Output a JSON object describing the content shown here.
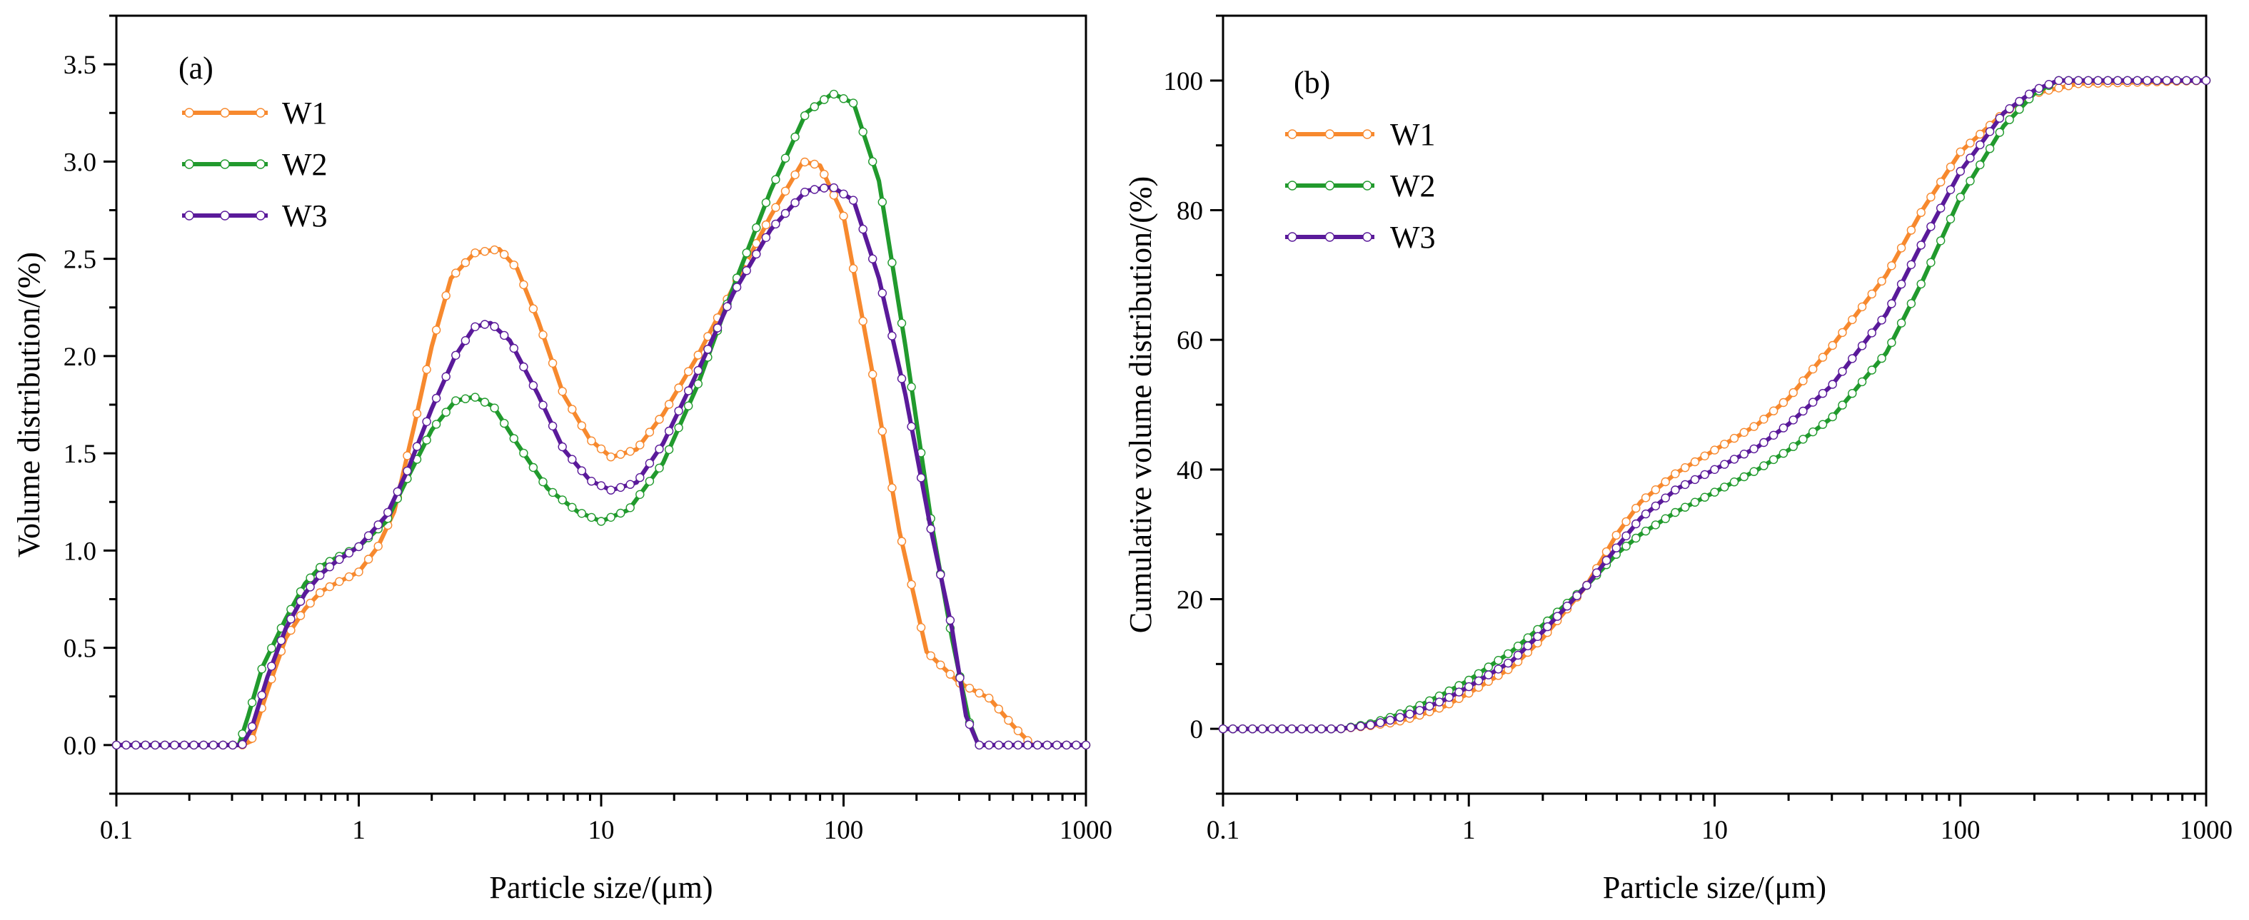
{
  "chart_data": [
    {
      "panel": "(a)",
      "type": "line",
      "x_scale": "log",
      "xlim": [
        0.1,
        1000
      ],
      "ylim": [
        -0.25,
        3.75
      ],
      "xticks": [
        0.1,
        1,
        10,
        100,
        1000
      ],
      "xtick_labels": [
        "0.1",
        "1",
        "10",
        "100",
        "1000"
      ],
      "yticks": [
        0,
        0.5,
        1,
        1.5,
        2,
        2.5,
        3,
        3.5
      ],
      "ytick_labels": [
        "0.0",
        "0.5",
        "1.0",
        "1.5",
        "2.0",
        "2.5",
        "3.0",
        "3.5"
      ],
      "xlabel": "Particle size/(μm)",
      "ylabel": "Volume distribution/(%)",
      "legend": "top-left",
      "series": [
        {
          "name": "W1",
          "color": "#F7892E",
          "x": [
            0.1,
            0.33,
            0.36,
            0.42,
            0.5,
            0.6,
            0.7,
            0.8,
            1.0,
            1.2,
            1.4,
            1.7,
            2.0,
            2.4,
            3.0,
            3.8,
            4.5,
            5.5,
            7,
            9,
            11,
            14,
            18,
            25,
            35,
            50,
            68,
            80,
            100,
            130,
            170,
            220,
            300,
            400,
            500,
            600,
            1000
          ],
          "y": [
            0,
            0,
            0.02,
            0.28,
            0.55,
            0.7,
            0.79,
            0.83,
            0.89,
            1.02,
            1.2,
            1.65,
            2.05,
            2.4,
            2.53,
            2.55,
            2.45,
            2.18,
            1.8,
            1.57,
            1.48,
            1.52,
            1.7,
            2.0,
            2.35,
            2.72,
            3.0,
            2.98,
            2.72,
            1.95,
            1.1,
            0.48,
            0.32,
            0.24,
            0.1,
            0,
            0
          ]
        },
        {
          "name": "W2",
          "color": "#219A2D",
          "x": [
            0.1,
            0.32,
            0.35,
            0.4,
            0.5,
            0.6,
            0.7,
            0.8,
            1.0,
            1.3,
            1.6,
            2.0,
            2.5,
            3.0,
            3.6,
            4.5,
            6,
            8,
            10,
            13,
            18,
            25,
            35,
            50,
            70,
            90,
            110,
            140,
            180,
            230,
            280,
            330,
            360,
            1000
          ],
          "y": [
            0,
            0,
            0.15,
            0.4,
            0.65,
            0.83,
            0.92,
            0.96,
            1.02,
            1.15,
            1.38,
            1.62,
            1.77,
            1.79,
            1.74,
            1.55,
            1.32,
            1.2,
            1.15,
            1.21,
            1.45,
            1.85,
            2.35,
            2.85,
            3.25,
            3.35,
            3.3,
            2.9,
            2.05,
            1.15,
            0.55,
            0.12,
            0,
            0
          ]
        },
        {
          "name": "W3",
          "color": "#5A1A9A",
          "x": [
            0.1,
            0.33,
            0.36,
            0.42,
            0.5,
            0.6,
            0.7,
            0.8,
            1.0,
            1.3,
            1.6,
            2.0,
            2.5,
            3.0,
            3.5,
            4.2,
            5.5,
            7,
            9,
            11,
            14,
            18,
            25,
            35,
            50,
            70,
            90,
            110,
            140,
            180,
            230,
            280,
            320,
            360,
            1000
          ],
          "y": [
            0,
            0,
            0.08,
            0.35,
            0.6,
            0.78,
            0.88,
            0.94,
            1.02,
            1.18,
            1.42,
            1.73,
            2.0,
            2.15,
            2.17,
            2.08,
            1.8,
            1.52,
            1.36,
            1.31,
            1.35,
            1.55,
            1.92,
            2.32,
            2.65,
            2.85,
            2.87,
            2.8,
            2.4,
            1.8,
            1.1,
            0.6,
            0.15,
            0,
            0
          ]
        }
      ]
    },
    {
      "panel": "(b)",
      "type": "line",
      "x_scale": "log",
      "xlim": [
        0.1,
        1000
      ],
      "ylim": [
        -10,
        110
      ],
      "xticks": [
        0.1,
        1,
        10,
        100,
        1000
      ],
      "xtick_labels": [
        "0.1",
        "1",
        "10",
        "100",
        "1000"
      ],
      "yticks": [
        0,
        20,
        40,
        60,
        80,
        100
      ],
      "ytick_labels": [
        "0",
        "20",
        "40",
        "60",
        "80",
        "100"
      ],
      "xlabel": "Particle size/(μm)",
      "ylabel": "Cumulative volume distribution/(%)",
      "legend": "top-left",
      "series": [
        {
          "name": "W1",
          "color": "#F7892E",
          "x": [
            0.1,
            0.3,
            0.4,
            0.5,
            0.6,
            0.8,
            1.0,
            1.5,
            2.0,
            3.0,
            4.0,
            5.0,
            7.0,
            10,
            15,
            20,
            30,
            50,
            70,
            100,
            150,
            200,
            300,
            1000
          ],
          "y": [
            0,
            0,
            0.5,
            1.0,
            1.8,
            3.5,
            5.5,
            9.5,
            14,
            22,
            30,
            35,
            39.5,
            43,
            47,
            51,
            59,
            70,
            80,
            89,
            95,
            98,
            99.5,
            100
          ]
        },
        {
          "name": "W2",
          "color": "#219A2D",
          "x": [
            0.1,
            0.3,
            0.4,
            0.5,
            0.6,
            0.8,
            1.0,
            1.5,
            2.0,
            3.0,
            4.0,
            5.0,
            7.0,
            10,
            15,
            20,
            30,
            50,
            70,
            100,
            150,
            200,
            250,
            1000
          ],
          "y": [
            0,
            0,
            0.8,
            2.0,
            3.2,
            5.5,
            7.5,
            12,
            16,
            22,
            27,
            30,
            33.5,
            36.5,
            40,
            43,
            48,
            58,
            69,
            82,
            93,
            98,
            100,
            100
          ]
        },
        {
          "name": "W3",
          "color": "#5A1A9A",
          "x": [
            0.1,
            0.3,
            0.4,
            0.5,
            0.6,
            0.8,
            1.0,
            1.5,
            2.0,
            3.0,
            4.0,
            5.0,
            7.0,
            10,
            15,
            20,
            30,
            50,
            70,
            100,
            150,
            200,
            250,
            1000
          ],
          "y": [
            0,
            0,
            0.6,
            1.5,
            2.5,
            4.5,
            6.5,
            10.5,
            15,
            22,
            28,
            32.5,
            37,
            40,
            43.5,
            47,
            53,
            64,
            75,
            86,
            95,
            98.5,
            100,
            100
          ]
        }
      ]
    }
  ]
}
